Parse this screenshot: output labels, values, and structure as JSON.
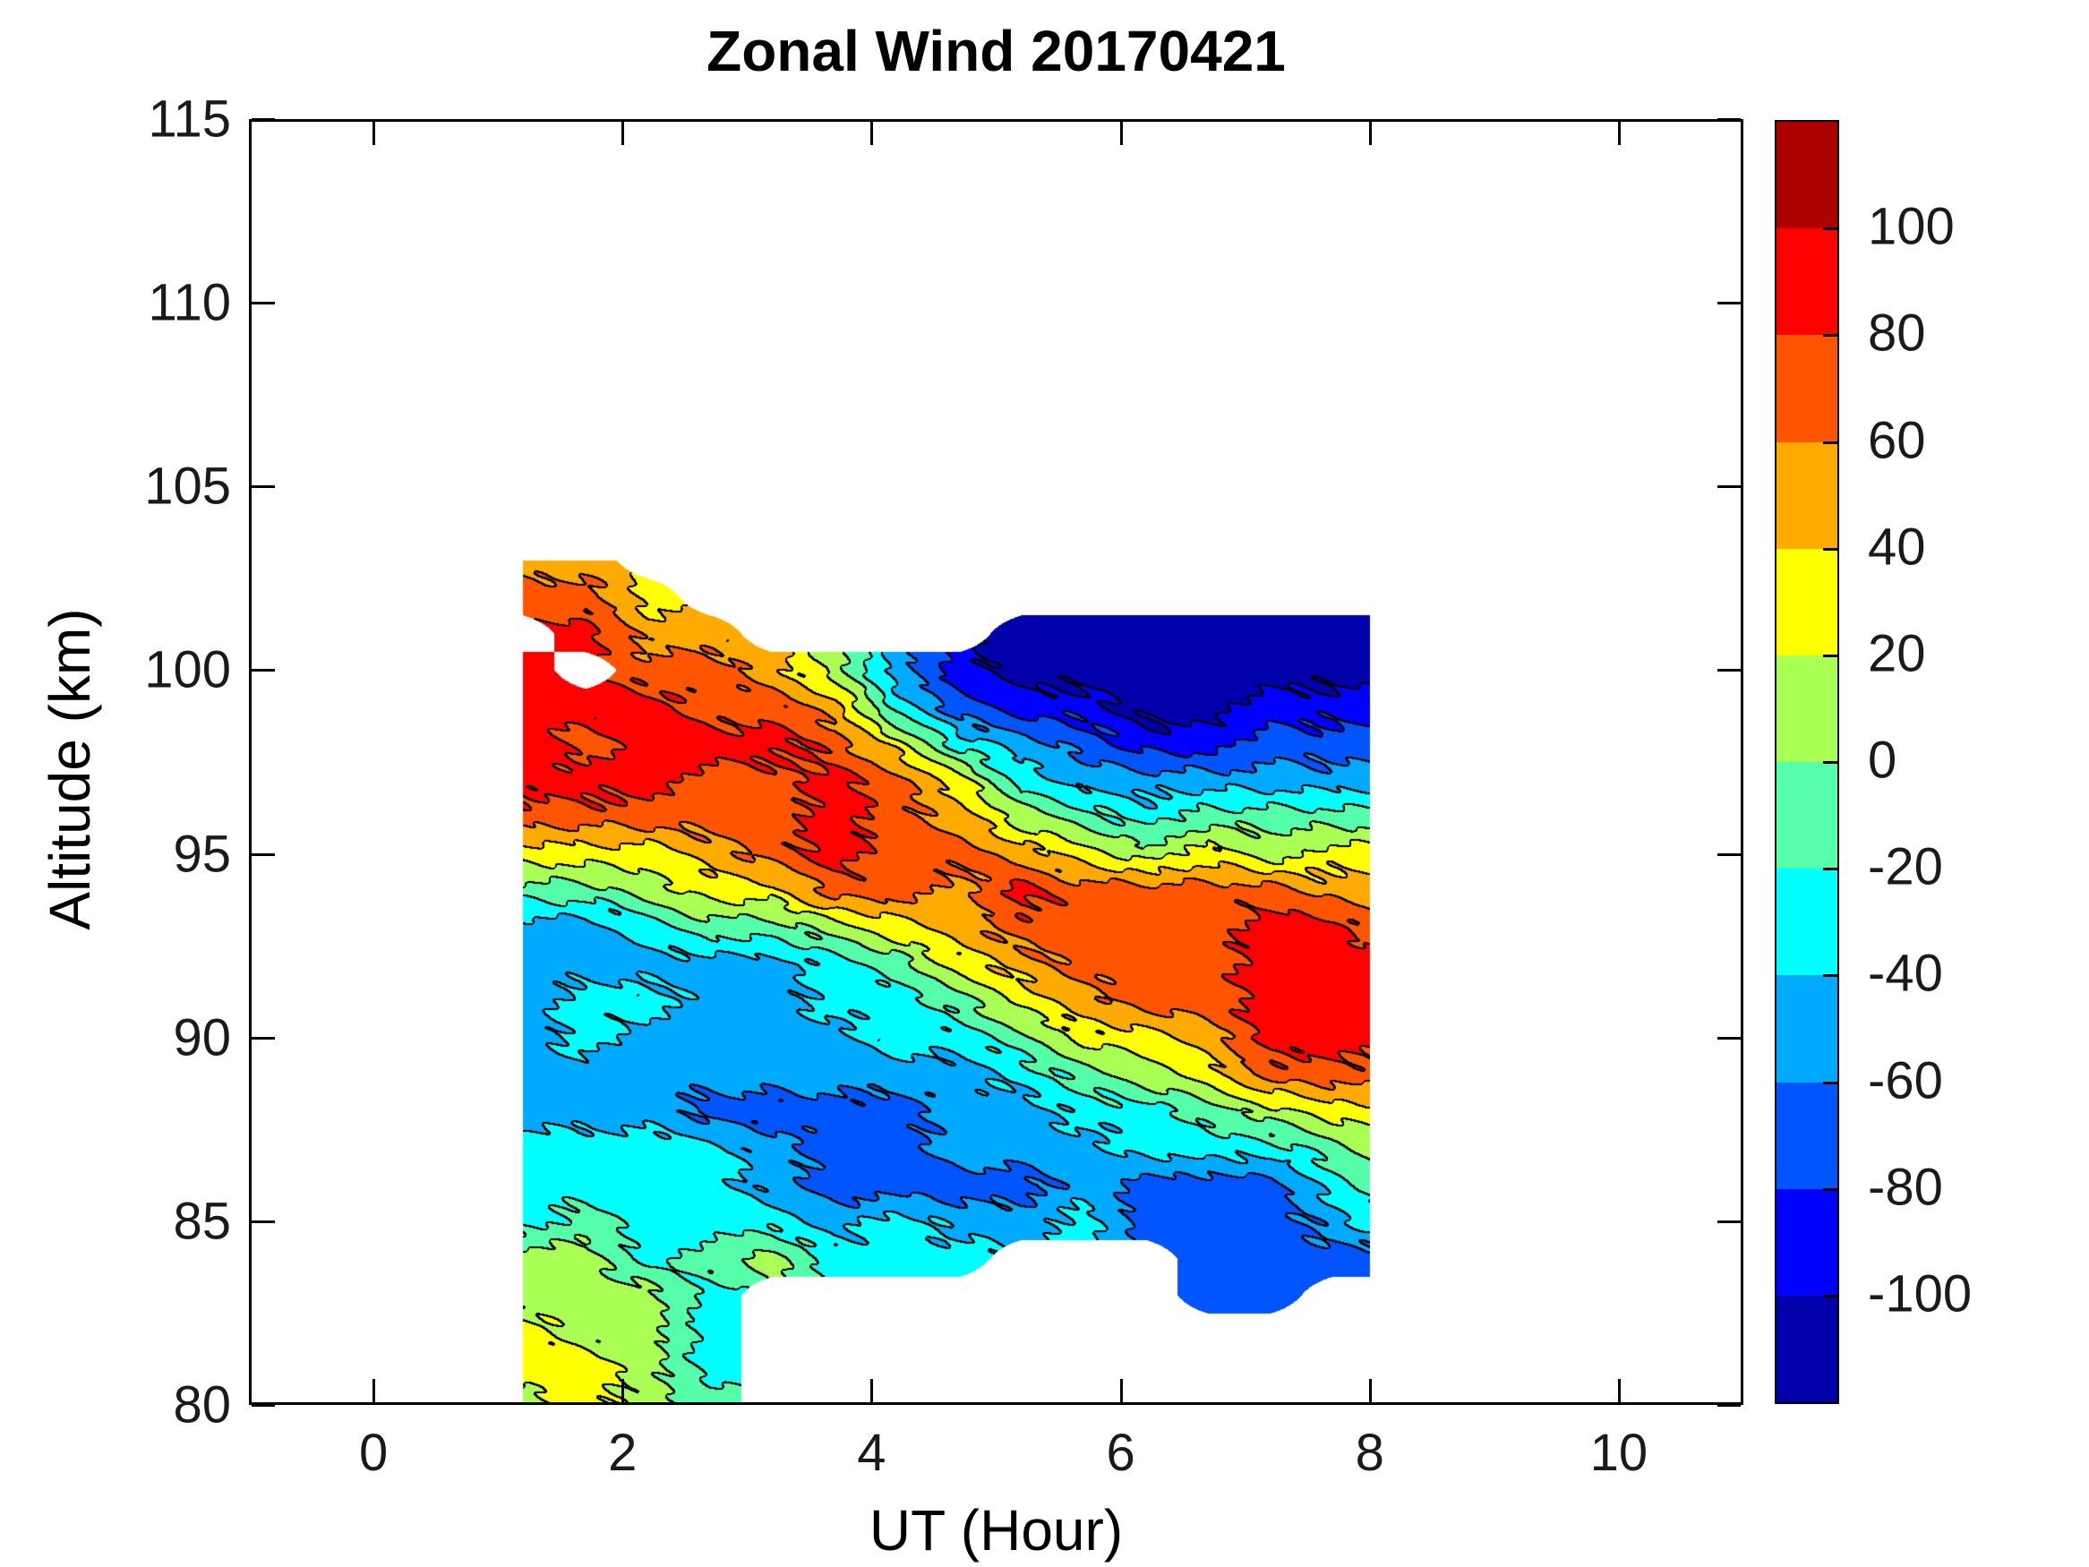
{
  "title": "Zonal Wind 20170421",
  "axes": {
    "x": {
      "label": "UT (Hour)",
      "range": [
        -1,
        11
      ],
      "ticks": [
        0,
        2,
        4,
        6,
        8,
        10
      ]
    },
    "y": {
      "label": "Altitude (km)",
      "range": [
        80,
        115
      ],
      "ticks": [
        80,
        85,
        90,
        95,
        100,
        105,
        110,
        115
      ]
    }
  },
  "colorbar": {
    "range": [
      -120,
      120
    ],
    "band_step": 20,
    "tick_labels": [
      100,
      80,
      60,
      40,
      20,
      0,
      -20,
      -40,
      -60,
      -80,
      -100
    ],
    "colors_top_to_bottom": [
      "#AA0000",
      "#FF0000",
      "#FF5500",
      "#FFAA00",
      "#FFFF00",
      "#AAFF55",
      "#55FFAA",
      "#00FFFF",
      "#00AAFF",
      "#0055FF",
      "#0000FF",
      "#0000AA"
    ]
  },
  "chart_data": {
    "type": "filled_contour",
    "title": "Zonal Wind 20170421",
    "xlabel": "UT (Hour)",
    "ylabel": "Altitude (km)",
    "xlim": [
      -1,
      11
    ],
    "ylim": [
      80,
      115
    ],
    "contour_levels_step": 20,
    "value_range": [
      -120,
      120
    ],
    "line_color": "#000000",
    "x": [
      1.2,
      1.7,
      2.2,
      2.7,
      3.2,
      3.7,
      4.2,
      4.7,
      5.2,
      5.7,
      6.2,
      6.7,
      7.2,
      7.7,
      8.0
    ],
    "y": [
      80,
      81,
      82,
      83,
      84,
      85,
      86,
      87,
      88,
      89,
      90,
      91,
      92,
      93,
      94,
      95,
      96,
      97,
      98,
      99,
      100,
      101,
      102,
      103
    ],
    "values": [
      [
        10,
        30,
        10,
        -10,
        null,
        null,
        null,
        null,
        null,
        null,
        null,
        null,
        null,
        null,
        null
      ],
      [
        30,
        30,
        10,
        -30,
        null,
        null,
        null,
        null,
        null,
        null,
        null,
        null,
        null,
        null,
        null
      ],
      [
        30,
        10,
        10,
        -30,
        null,
        null,
        null,
        null,
        null,
        null,
        null,
        null,
        null,
        null,
        null
      ],
      [
        10,
        10,
        10,
        -30,
        null,
        null,
        null,
        null,
        null,
        null,
        null,
        -70,
        -70,
        null,
        null
      ],
      [
        10,
        10,
        -30,
        -10,
        10,
        -30,
        -30,
        -30,
        null,
        null,
        null,
        -70,
        -70,
        -70,
        -70
      ],
      [
        -30,
        -10,
        -30,
        -30,
        -30,
        -50,
        -30,
        -50,
        -50,
        -30,
        -70,
        -70,
        -70,
        -50,
        -30
      ],
      [
        -30,
        -30,
        -30,
        -30,
        -50,
        -70,
        -70,
        -70,
        -70,
        -50,
        -70,
        -70,
        -70,
        -30,
        -10
      ],
      [
        -30,
        -30,
        -30,
        -30,
        -50,
        -70,
        -70,
        -50,
        -50,
        -50,
        -30,
        -30,
        -30,
        -10,
        10
      ],
      [
        -50,
        -50,
        -50,
        -70,
        -70,
        -70,
        -70,
        -50,
        -50,
        -30,
        -30,
        -10,
        10,
        30,
        30
      ],
      [
        -50,
        -50,
        -50,
        -50,
        -50,
        -50,
        -50,
        -50,
        -30,
        -10,
        10,
        30,
        70,
        70,
        70
      ],
      [
        -50,
        -30,
        -50,
        -50,
        -50,
        -50,
        -30,
        -30,
        -10,
        30,
        30,
        50,
        90,
        90,
        90
      ],
      [
        -50,
        -30,
        -30,
        -50,
        -50,
        -30,
        -30,
        -10,
        30,
        50,
        70,
        70,
        90,
        90,
        90
      ],
      [
        -50,
        -50,
        -50,
        -50,
        -50,
        -30,
        -10,
        30,
        50,
        70,
        70,
        70,
        90,
        90,
        90
      ],
      [
        -50,
        -50,
        -30,
        -10,
        -10,
        10,
        30,
        50,
        70,
        70,
        70,
        70,
        90,
        90,
        70
      ],
      [
        -10,
        -10,
        10,
        30,
        30,
        70,
        70,
        50,
        90,
        70,
        70,
        70,
        70,
        50,
        50
      ],
      [
        30,
        30,
        30,
        50,
        70,
        90,
        70,
        70,
        50,
        30,
        10,
        30,
        10,
        30,
        30
      ],
      [
        70,
        70,
        70,
        70,
        70,
        90,
        70,
        50,
        10,
        -10,
        -30,
        -10,
        -10,
        -10,
        -10
      ],
      [
        90,
        90,
        90,
        70,
        70,
        90,
        70,
        30,
        -30,
        -50,
        -50,
        -50,
        -50,
        -50,
        -50
      ],
      [
        90,
        70,
        90,
        90,
        90,
        70,
        30,
        -30,
        -50,
        -70,
        -90,
        -90,
        -70,
        -70,
        -70
      ],
      [
        90,
        90,
        90,
        70,
        70,
        50,
        -30,
        -70,
        -90,
        -90,
        -110,
        -110,
        -90,
        -90,
        -90
      ],
      [
        90,
        null,
        70,
        70,
        50,
        10,
        -50,
        -90,
        -110,
        -110,
        -110,
        -110,
        -110,
        -110,
        -110
      ],
      [
        null,
        90,
        50,
        50,
        null,
        null,
        null,
        null,
        -110,
        -110,
        -110,
        -110,
        -110,
        -110,
        -110
      ],
      [
        70,
        70,
        30,
        null,
        null,
        null,
        null,
        null,
        null,
        null,
        null,
        null,
        null,
        null,
        null
      ],
      [
        50,
        50,
        null,
        null,
        null,
        null,
        null,
        null,
        null,
        null,
        null,
        null,
        null,
        null,
        null
      ]
    ]
  }
}
